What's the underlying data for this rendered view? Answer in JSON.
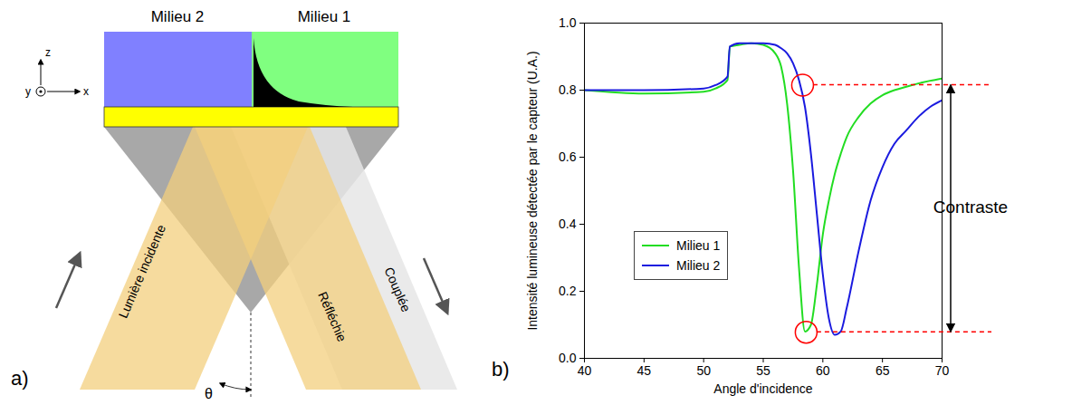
{
  "diagram": {
    "panel_label": "a)",
    "media": [
      "Milieu 2",
      "Milieu 1"
    ],
    "axes": {
      "z": "z",
      "y": "y",
      "x": "x"
    },
    "beams": {
      "incident": "Lumière incidente",
      "reflected": "Réfléchie",
      "coupled": "Couplée"
    },
    "angle": "θ"
  },
  "chart_data": {
    "type": "line",
    "panel_label": "b)",
    "x_label": "Angle d'incidence",
    "y_label": "Intensité lumineuse détectée par le capteur (U.A.)",
    "x": [
      40,
      45,
      50,
      51,
      52,
      52.2,
      53,
      54,
      55,
      56,
      56.5,
      57,
      57.5,
      58,
      58.5,
      59,
      59.5,
      60,
      60.5,
      61,
      61.5,
      62,
      63,
      64,
      65,
      66,
      67,
      68,
      69,
      70
    ],
    "series": [
      {
        "name": "Milieu 1",
        "color": "#22dd22",
        "values": [
          0.8,
          0.79,
          0.795,
          0.805,
          0.83,
          0.93,
          0.935,
          0.94,
          0.935,
          0.91,
          0.87,
          0.76,
          0.56,
          0.27,
          0.08,
          0.1,
          0.22,
          0.37,
          0.47,
          0.55,
          0.61,
          0.66,
          0.72,
          0.76,
          0.785,
          0.8,
          0.81,
          0.82,
          0.828,
          0.835
        ]
      },
      {
        "name": "Milieu 2",
        "color": "#1a1adf",
        "values": [
          0.8,
          0.8,
          0.805,
          0.815,
          0.84,
          0.93,
          0.94,
          0.94,
          0.94,
          0.935,
          0.925,
          0.91,
          0.88,
          0.83,
          0.75,
          0.61,
          0.43,
          0.25,
          0.12,
          0.07,
          0.08,
          0.15,
          0.32,
          0.47,
          0.57,
          0.64,
          0.68,
          0.72,
          0.75,
          0.77
        ]
      }
    ],
    "xlim": [
      40,
      70
    ],
    "xticks": [
      40,
      45,
      50,
      55,
      60,
      65,
      70
    ],
    "ylim": [
      0,
      1
    ],
    "yticks": [
      {
        "value": 0,
        "label": "0.0"
      },
      0.2,
      0.4,
      0.6,
      0.8,
      {
        "value": 1,
        "label": "1.0"
      }
    ],
    "grid": false,
    "legend": "lower left",
    "contrast": {
      "label": "Contraste",
      "color": "#ff0000",
      "points": [
        {
          "x": 58.3,
          "y": 0.815
        },
        {
          "x": 58.6,
          "y": 0.078
        }
      ]
    }
  }
}
